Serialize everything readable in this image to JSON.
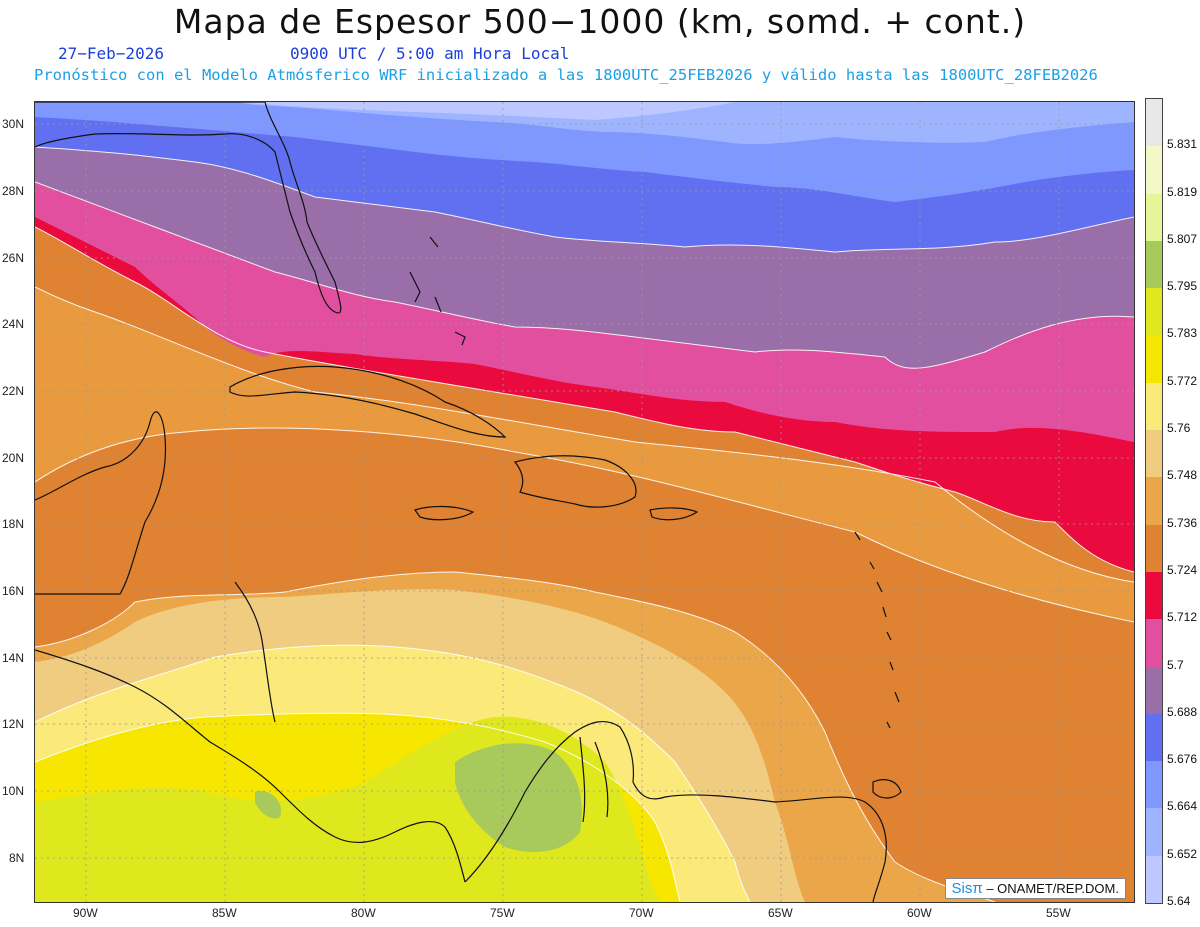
{
  "header": {
    "title": "Mapa de Espesor 500−1000 (km, somd. + cont.)",
    "date": "27−Feb−2026",
    "time": "0900 UTC / 5:00 am Hora Local",
    "info": "Pronóstico con el Modelo Atmósferico WRF inicializado a las 1800UTC_25FEB2026 y válido hasta las  1800UTC_28FEB2026"
  },
  "credit": {
    "brand": "Sisπ",
    "text": " – ONAMET/REP.DOM."
  },
  "axes": {
    "lat_labels": [
      "30N",
      "28N",
      "26N",
      "24N",
      "22N",
      "20N",
      "18N",
      "16N",
      "14N",
      "12N",
      "10N",
      "8N"
    ],
    "lon_labels": [
      "90W",
      "85W",
      "80W",
      "75W",
      "70W",
      "65W",
      "60W",
      "55W"
    ]
  },
  "colorbar": {
    "labels": [
      "5.831",
      "5.819",
      "5.807",
      "5.795",
      "5.783",
      "5.772",
      "5.76",
      "5.748",
      "5.736",
      "5.724",
      "5.712",
      "5.7",
      "5.688",
      "5.676",
      "5.664",
      "5.652",
      "5.64"
    ],
    "colors": [
      "#e8e8e8",
      "#f4f7c8",
      "#e6f59a",
      "#a8c95c",
      "#dfe81c",
      "#f7e700",
      "#fbea7a",
      "#f0cc80",
      "#eba64a",
      "#df8232",
      "#ea0a3e",
      "#e24f9e",
      "#9a6ea8",
      "#6070f0",
      "#7e98ff",
      "#9fb4ff",
      "#bcc8ff"
    ]
  }
}
